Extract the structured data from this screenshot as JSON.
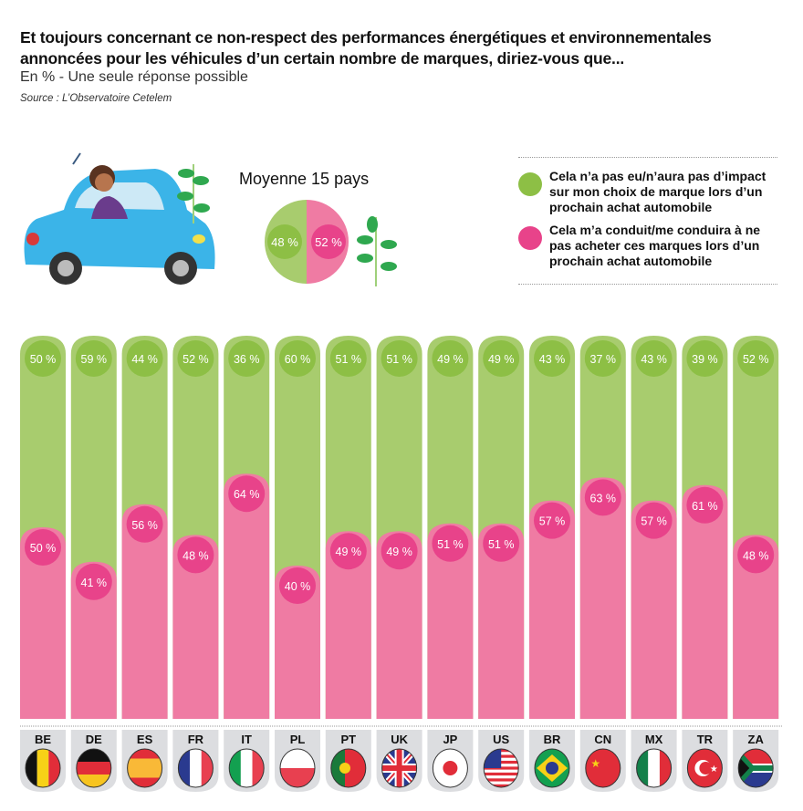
{
  "header": {
    "title": "Et toujours concernant ce non-respect des performances énergétiques et environnementales annoncées pour les véhicules d’un certain nombre de marques, diriez-vous que...",
    "subtitle": "En % - Une seule réponse possible",
    "source": "Source : L’Observatoire Cetelem"
  },
  "average": {
    "title": "Moyenne 15 pays",
    "green_label": "48 %",
    "pink_label": "52 %",
    "green": 48,
    "pink": 52
  },
  "legend": [
    {
      "label": "Cela n’a pas eu/n’aura pas d’impact sur mon choix de marque lors d’un prochain achat automobile",
      "color": "#8dbf45"
    },
    {
      "label": "Cela m’a conduit/me conduira à ne pas acheter ces marques lors d’un prochain achat automobile",
      "color": "#e8438a"
    }
  ],
  "colors": {
    "green_bar": "#a8cc6e",
    "green_dot": "#8dbf45",
    "pink_bar": "#ef7ba3",
    "pink_dot": "#e8438a",
    "tab": "#dcdde0"
  },
  "chart_data": {
    "type": "bar",
    "stacked": true,
    "categories": [
      "BE",
      "DE",
      "ES",
      "FR",
      "IT",
      "PL",
      "PT",
      "UK",
      "JP",
      "US",
      "BR",
      "CN",
      "MX",
      "TR",
      "ZA"
    ],
    "series": [
      {
        "name": "Cela n’a pas eu/n’aura pas d’impact sur mon choix de marque lors d’un prochain achat automobile",
        "values": [
          50,
          59,
          44,
          52,
          36,
          60,
          51,
          51,
          49,
          49,
          43,
          37,
          43,
          39,
          52
        ]
      },
      {
        "name": "Cela m’a conduit/me conduira à ne pas acheter ces marques lors d’un prochain achat automobile",
        "values": [
          50,
          41,
          56,
          48,
          64,
          40,
          49,
          49,
          51,
          51,
          57,
          63,
          57,
          61,
          48
        ]
      }
    ],
    "ylim": [
      0,
      100
    ],
    "unit": "%"
  }
}
